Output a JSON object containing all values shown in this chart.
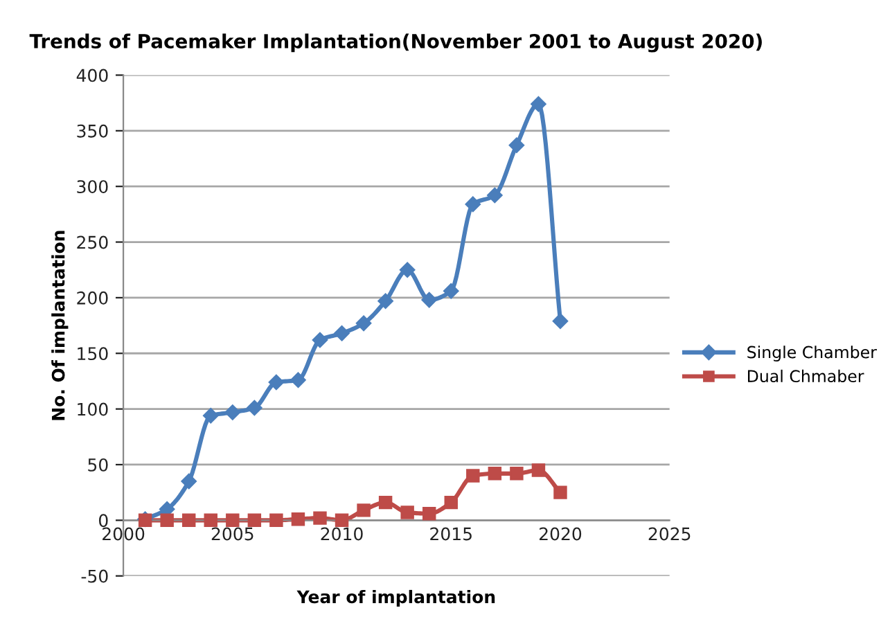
{
  "chart_data": {
    "type": "line",
    "title": "Trends of Pacemaker Implantation(November 2001 to August 2020)",
    "xlabel": "Year of implantation",
    "ylabel": "No. Of implantation",
    "x": [
      2001,
      2002,
      2003,
      2004,
      2005,
      2006,
      2007,
      2008,
      2009,
      2010,
      2011,
      2012,
      2013,
      2014,
      2015,
      2016,
      2017,
      2018,
      2019,
      2020
    ],
    "series": [
      {
        "name": "Single Chamber",
        "color": "#4a7ebb",
        "marker": "diamond",
        "values": [
          1,
          10,
          35,
          94,
          97,
          101,
          124,
          126,
          162,
          168,
          177,
          197,
          225,
          198,
          206,
          284,
          292,
          337,
          374,
          179
        ]
      },
      {
        "name": "Dual Chmaber",
        "color": "#be4b48",
        "marker": "square",
        "values": [
          0,
          0,
          0,
          0,
          0,
          0,
          0,
          1,
          2,
          0,
          9,
          16,
          7,
          6,
          16,
          40,
          42,
          42,
          45,
          25
        ]
      }
    ],
    "xlim": [
      2000,
      2025
    ],
    "xticks": [
      2000,
      2005,
      2010,
      2015,
      2020,
      2025
    ],
    "ylim": [
      -50,
      400
    ],
    "yticks": [
      -50,
      0,
      50,
      100,
      150,
      200,
      250,
      300,
      350,
      400
    ],
    "grid": "y",
    "legend": "right",
    "line_style": "solid"
  }
}
